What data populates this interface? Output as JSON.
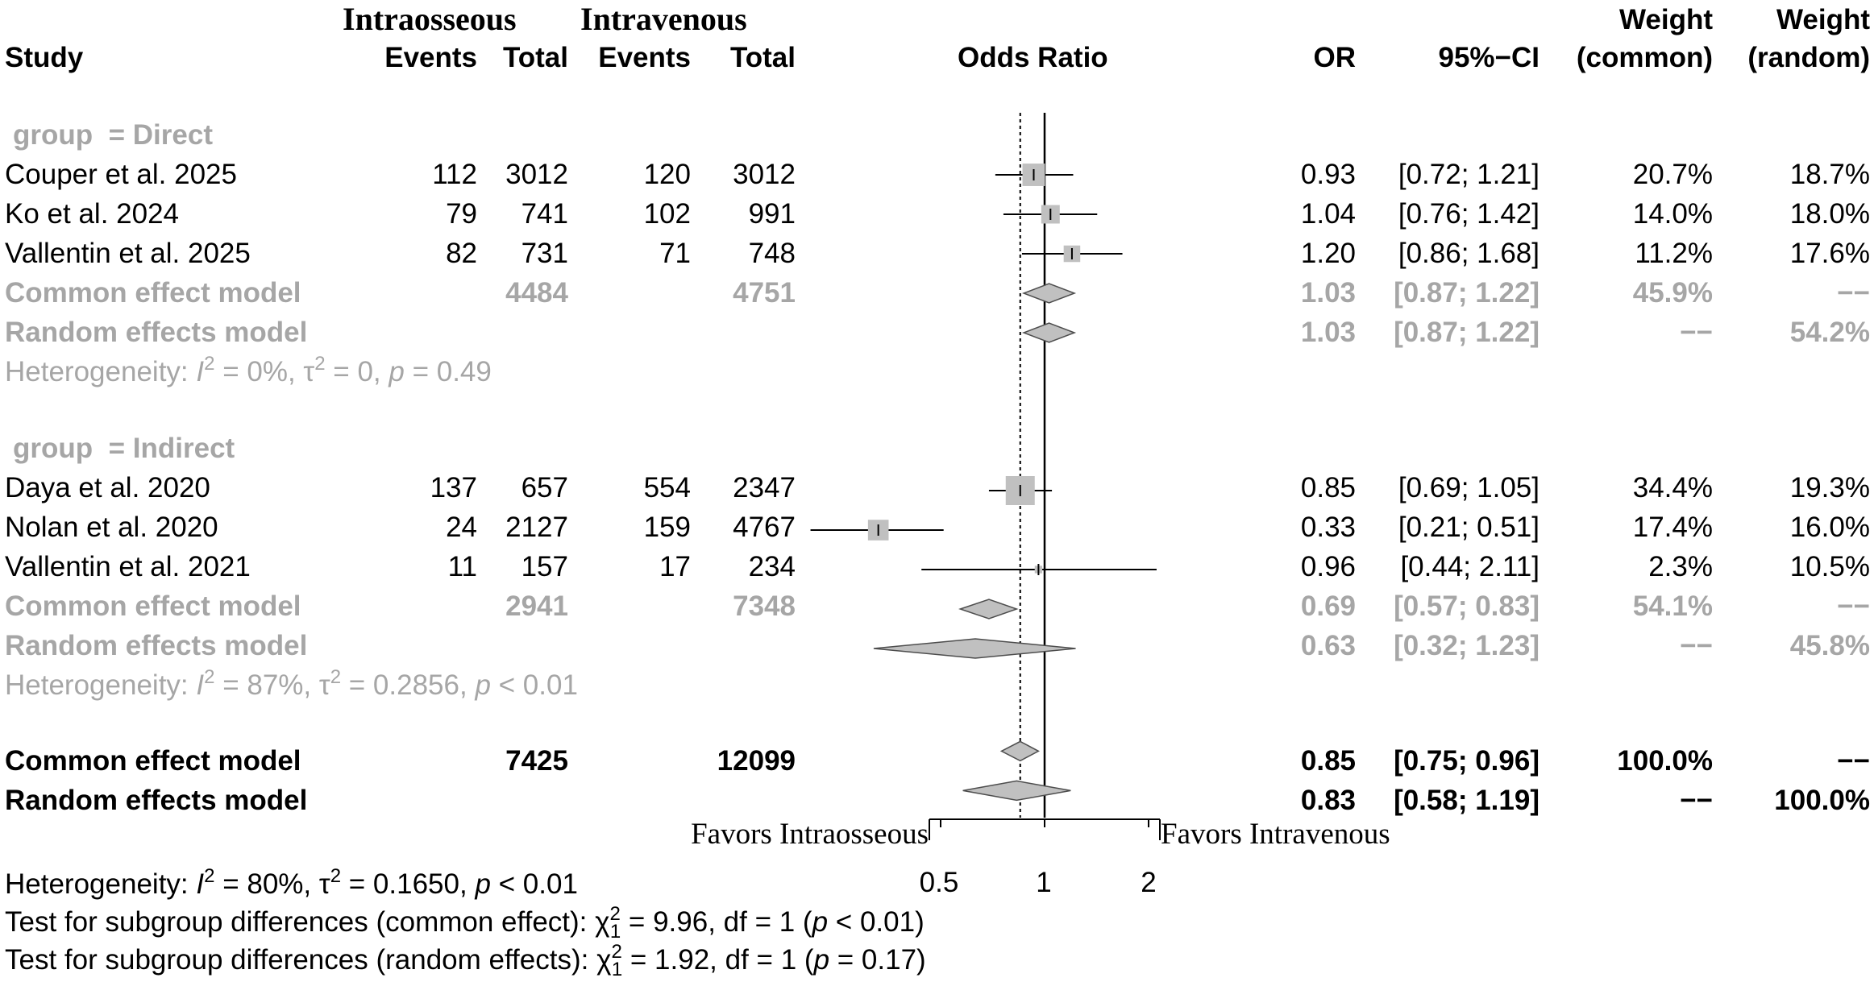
{
  "chart_data": {
    "type": "forest",
    "group_headers": {
      "intraosseous": "Intraosseous",
      "intravenous": "Intravenous"
    },
    "columns": {
      "study": "Study",
      "events_io": "Events",
      "total_io": "Total",
      "events_iv": "Events",
      "total_iv": "Total",
      "plot": "Odds Ratio",
      "or": "OR",
      "ci": "95%−CI",
      "weight_common_l1": "Weight",
      "weight_common_l2": "(common)",
      "weight_random_l1": "Weight",
      "weight_random_l2": "(random)"
    },
    "axis": {
      "scale": "log",
      "ticks": [
        "0.5",
        "1",
        "2"
      ],
      "tick_values": [
        0.5,
        1,
        2
      ],
      "xlim": [
        0.25,
        2.6
      ],
      "null_value": 1,
      "overall_reference": 0.85,
      "favors_left": "Favors Intraosseous",
      "favors_right": "Favors Intravenous"
    },
    "subgroups": [
      {
        "label_key": "group",
        "label_eq": "=",
        "label_value": "Direct",
        "studies": [
          {
            "name": "Couper et al. 2025",
            "ev_io": "112",
            "tot_io": "3012",
            "ev_iv": "120",
            "tot_iv": "3012",
            "or_text": "0.93",
            "ci_text": "[0.72; 1.21]",
            "wc_text": "20.7%",
            "wr_text": "18.7%",
            "or": 0.93,
            "lo": 0.72,
            "hi": 1.21,
            "w_common": 20.7
          },
          {
            "name": "Ko et al. 2024",
            "ev_io": "79",
            "tot_io": "741",
            "ev_iv": "102",
            "tot_iv": "991",
            "or_text": "1.04",
            "ci_text": "[0.76; 1.42]",
            "wc_text": "14.0%",
            "wr_text": "18.0%",
            "or": 1.04,
            "lo": 0.76,
            "hi": 1.42,
            "w_common": 14.0
          },
          {
            "name": "Vallentin et al. 2025",
            "ev_io": "82",
            "tot_io": "731",
            "ev_iv": "71",
            "tot_iv": "748",
            "or_text": "1.20",
            "ci_text": "[0.86; 1.68]",
            "wc_text": "11.2%",
            "wr_text": "17.6%",
            "or": 1.2,
            "lo": 0.86,
            "hi": 1.68,
            "w_common": 11.2
          }
        ],
        "common": {
          "label": "Common effect model",
          "tot_io": "4484",
          "tot_iv": "4751",
          "or_text": "1.03",
          "ci_text": "[0.87; 1.22]",
          "wc_text": "45.9%",
          "wr_text": "−−",
          "or": 1.03,
          "lo": 0.87,
          "hi": 1.22
        },
        "random": {
          "label": "Random effects model",
          "or_text": "1.03",
          "ci_text": "[0.87; 1.22]",
          "wc_text": "−−",
          "wr_text": "54.2%",
          "or": 1.03,
          "lo": 0.87,
          "hi": 1.22
        },
        "heterogeneity": {
          "prefix": "Heterogeneity: ",
          "i2": "I",
          "i2_val": " = 0%, τ",
          "tau_val": " = 0, ",
          "p": "p",
          "p_val": " = 0.49"
        }
      },
      {
        "label_key": "group",
        "label_eq": "=",
        "label_value": "Indirect",
        "studies": [
          {
            "name": "Daya et al. 2020",
            "ev_io": "137",
            "tot_io": "657",
            "ev_iv": "554",
            "tot_iv": "2347",
            "or_text": "0.85",
            "ci_text": "[0.69; 1.05]",
            "wc_text": "34.4%",
            "wr_text": "19.3%",
            "or": 0.85,
            "lo": 0.69,
            "hi": 1.05,
            "w_common": 34.4
          },
          {
            "name": "Nolan et al. 2020",
            "ev_io": "24",
            "tot_io": "2127",
            "ev_iv": "159",
            "tot_iv": "4767",
            "or_text": "0.33",
            "ci_text": "[0.21; 0.51]",
            "wc_text": "17.4%",
            "wr_text": "16.0%",
            "or": 0.33,
            "lo": 0.21,
            "hi": 0.51,
            "w_common": 17.4
          },
          {
            "name": "Vallentin et al. 2021",
            "ev_io": "11",
            "tot_io": "157",
            "ev_iv": "17",
            "tot_iv": "234",
            "or_text": "0.96",
            "ci_text": "[0.44; 2.11]",
            "wc_text": "2.3%",
            "wr_text": "10.5%",
            "or": 0.96,
            "lo": 0.44,
            "hi": 2.11,
            "w_common": 2.3
          }
        ],
        "common": {
          "label": "Common effect model",
          "tot_io": "2941",
          "tot_iv": "7348",
          "or_text": "0.69",
          "ci_text": "[0.57; 0.83]",
          "wc_text": "54.1%",
          "wr_text": "−−",
          "or": 0.69,
          "lo": 0.57,
          "hi": 0.83
        },
        "random": {
          "label": "Random effects model",
          "or_text": "0.63",
          "ci_text": "[0.32; 1.23]",
          "wc_text": "−−",
          "wr_text": "45.8%",
          "or": 0.63,
          "lo": 0.32,
          "hi": 1.23
        },
        "heterogeneity": {
          "prefix": "Heterogeneity: ",
          "i2": "I",
          "i2_val": " = 87%, τ",
          "tau_val": " = 0.2856, ",
          "p": "p",
          "p_val": " < 0.01"
        }
      }
    ],
    "overall": {
      "common": {
        "label": "Common effect model",
        "tot_io": "7425",
        "tot_iv": "12099",
        "or_text": "0.85",
        "ci_text": "[0.75; 0.96]",
        "wc_text": "100.0%",
        "wr_text": "−−",
        "or": 0.85,
        "lo": 0.75,
        "hi": 0.96
      },
      "random": {
        "label": "Random effects model",
        "or_text": "0.83",
        "ci_text": "[0.58; 1.19]",
        "wc_text": "−−",
        "wr_text": "100.0%",
        "or": 0.83,
        "lo": 0.58,
        "hi": 1.19
      },
      "heterogeneity": {
        "prefix": "Heterogeneity: ",
        "i2": "I",
        "i2_val": " = 80%, τ",
        "tau_val": " = 0.1650, ",
        "p": "p",
        "p_val": " < 0.01"
      },
      "test_common": {
        "prefix": "Test for subgroup differences (common effect): χ",
        "sub": "1",
        "mid": " = 9.96, df = 1 (",
        "p": "p",
        "suffix": " < 0.01)"
      },
      "test_random": {
        "prefix": "Test for subgroup differences (random effects): χ",
        "sub": "1",
        "mid": " = 1.92, df = 1 (",
        "p": "p",
        "suffix": " = 0.17)"
      }
    },
    "colors": {
      "study": "#000000",
      "subgroup": "#a6a6a6",
      "box_fill": "#c0c0c0",
      "diamond_fill": "#c0c0c0"
    }
  }
}
